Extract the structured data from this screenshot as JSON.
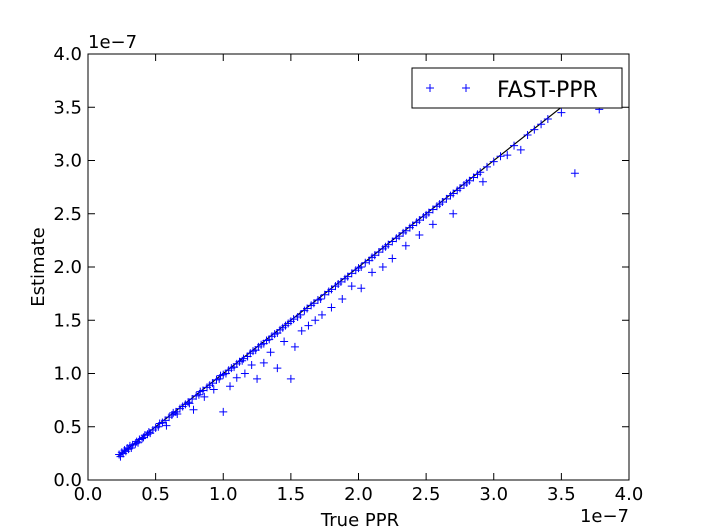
{
  "chart_data": {
    "type": "scatter",
    "title": "",
    "xlabel": "True PPR",
    "ylabel": "Estimate",
    "xlim": [
      0.0,
      4.0
    ],
    "ylim": [
      0.0,
      4.0
    ],
    "x_offset_label": "1e−7",
    "y_offset_label": "1e−7",
    "x_ticks": [
      "0.0",
      "0.5",
      "1.0",
      "1.5",
      "2.0",
      "2.5",
      "3.0",
      "3.5",
      "4.0"
    ],
    "y_ticks": [
      "0.0",
      "0.5",
      "1.0",
      "1.5",
      "2.0",
      "2.5",
      "3.0",
      "3.5",
      "4.0"
    ],
    "grid": false,
    "legend_placement": "top-right",
    "reference_line": {
      "x": [
        0.22,
        3.55
      ],
      "y": [
        0.22,
        3.55
      ]
    },
    "series": [
      {
        "name": "FAST-PPR",
        "marker": "+",
        "color": "#0000ff",
        "points": [
          [
            0.23,
            0.24
          ],
          [
            0.24,
            0.22
          ],
          [
            0.25,
            0.26
          ],
          [
            0.26,
            0.25
          ],
          [
            0.27,
            0.28
          ],
          [
            0.28,
            0.27
          ],
          [
            0.29,
            0.3
          ],
          [
            0.3,
            0.29
          ],
          [
            0.31,
            0.32
          ],
          [
            0.32,
            0.3
          ],
          [
            0.33,
            0.33
          ],
          [
            0.35,
            0.34
          ],
          [
            0.36,
            0.36
          ],
          [
            0.37,
            0.35
          ],
          [
            0.38,
            0.38
          ],
          [
            0.4,
            0.39
          ],
          [
            0.41,
            0.4
          ],
          [
            0.42,
            0.42
          ],
          [
            0.44,
            0.43
          ],
          [
            0.45,
            0.45
          ],
          [
            0.46,
            0.44
          ],
          [
            0.48,
            0.47
          ],
          [
            0.5,
            0.49
          ],
          [
            0.52,
            0.5
          ],
          [
            0.53,
            0.53
          ],
          [
            0.55,
            0.54
          ],
          [
            0.57,
            0.56
          ],
          [
            0.58,
            0.51
          ],
          [
            0.6,
            0.59
          ],
          [
            0.62,
            0.61
          ],
          [
            0.63,
            0.63
          ],
          [
            0.65,
            0.64
          ],
          [
            0.66,
            0.62
          ],
          [
            0.68,
            0.67
          ],
          [
            0.7,
            0.69
          ],
          [
            0.72,
            0.71
          ],
          [
            0.74,
            0.73
          ],
          [
            0.75,
            0.72
          ],
          [
            0.77,
            0.76
          ],
          [
            0.78,
            0.66
          ],
          [
            0.8,
            0.79
          ],
          [
            0.82,
            0.8
          ],
          [
            0.83,
            0.83
          ],
          [
            0.85,
            0.84
          ],
          [
            0.86,
            0.78
          ],
          [
            0.88,
            0.87
          ],
          [
            0.9,
            0.89
          ],
          [
            0.92,
            0.91
          ],
          [
            0.93,
            0.85
          ],
          [
            0.95,
            0.94
          ],
          [
            0.97,
            0.95
          ],
          [
            0.98,
            0.98
          ],
          [
            1.0,
            0.99
          ],
          [
            1.0,
            0.64
          ],
          [
            1.02,
            1.0
          ],
          [
            1.04,
            1.03
          ],
          [
            1.05,
            0.88
          ],
          [
            1.06,
            1.05
          ],
          [
            1.08,
            1.06
          ],
          [
            1.1,
            1.09
          ],
          [
            1.1,
            0.96
          ],
          [
            1.12,
            1.11
          ],
          [
            1.14,
            1.12
          ],
          [
            1.15,
            1.14
          ],
          [
            1.16,
            1.0
          ],
          [
            1.18,
            1.16
          ],
          [
            1.2,
            1.19
          ],
          [
            1.21,
            1.08
          ],
          [
            1.22,
            1.21
          ],
          [
            1.24,
            1.22
          ],
          [
            1.25,
            0.95
          ],
          [
            1.26,
            1.25
          ],
          [
            1.28,
            1.27
          ],
          [
            1.3,
            1.28
          ],
          [
            1.3,
            1.1
          ],
          [
            1.32,
            1.31
          ],
          [
            1.34,
            1.32
          ],
          [
            1.35,
            1.2
          ],
          [
            1.36,
            1.35
          ],
          [
            1.38,
            1.37
          ],
          [
            1.4,
            1.38
          ],
          [
            1.4,
            1.05
          ],
          [
            1.42,
            1.41
          ],
          [
            1.44,
            1.43
          ],
          [
            1.45,
            1.3
          ],
          [
            1.46,
            1.45
          ],
          [
            1.48,
            1.47
          ],
          [
            1.5,
            1.49
          ],
          [
            1.5,
            0.95
          ],
          [
            1.52,
            1.51
          ],
          [
            1.53,
            1.25
          ],
          [
            1.55,
            1.53
          ],
          [
            1.57,
            1.55
          ],
          [
            1.58,
            1.4
          ],
          [
            1.6,
            1.59
          ],
          [
            1.62,
            1.61
          ],
          [
            1.63,
            1.45
          ],
          [
            1.65,
            1.64
          ],
          [
            1.67,
            1.66
          ],
          [
            1.68,
            1.5
          ],
          [
            1.7,
            1.69
          ],
          [
            1.72,
            1.7
          ],
          [
            1.73,
            1.55
          ],
          [
            1.75,
            1.74
          ],
          [
            1.78,
            1.77
          ],
          [
            1.8,
            1.79
          ],
          [
            1.8,
            1.62
          ],
          [
            1.83,
            1.82
          ],
          [
            1.85,
            1.84
          ],
          [
            1.87,
            1.86
          ],
          [
            1.88,
            1.7
          ],
          [
            1.9,
            1.89
          ],
          [
            1.92,
            1.91
          ],
          [
            1.95,
            1.94
          ],
          [
            1.95,
            1.82
          ],
          [
            1.98,
            1.97
          ],
          [
            2.0,
            1.99
          ],
          [
            2.02,
            2.0
          ],
          [
            2.02,
            1.8
          ],
          [
            2.05,
            2.04
          ],
          [
            2.08,
            2.06
          ],
          [
            2.1,
            2.09
          ],
          [
            2.1,
            1.95
          ],
          [
            2.12,
            2.11
          ],
          [
            2.15,
            2.14
          ],
          [
            2.18,
            2.17
          ],
          [
            2.18,
            2.0
          ],
          [
            2.2,
            2.19
          ],
          [
            2.22,
            2.21
          ],
          [
            2.25,
            2.24
          ],
          [
            2.25,
            2.08
          ],
          [
            2.28,
            2.27
          ],
          [
            2.3,
            2.29
          ],
          [
            2.33,
            2.32
          ],
          [
            2.35,
            2.34
          ],
          [
            2.35,
            2.2
          ],
          [
            2.38,
            2.37
          ],
          [
            2.4,
            2.39
          ],
          [
            2.43,
            2.42
          ],
          [
            2.45,
            2.44
          ],
          [
            2.45,
            2.3
          ],
          [
            2.48,
            2.47
          ],
          [
            2.5,
            2.49
          ],
          [
            2.52,
            2.51
          ],
          [
            2.55,
            2.54
          ],
          [
            2.55,
            2.4
          ],
          [
            2.58,
            2.57
          ],
          [
            2.6,
            2.59
          ],
          [
            2.62,
            2.61
          ],
          [
            2.65,
            2.64
          ],
          [
            2.68,
            2.67
          ],
          [
            2.7,
            2.69
          ],
          [
            2.7,
            2.5
          ],
          [
            2.73,
            2.72
          ],
          [
            2.75,
            2.74
          ],
          [
            2.78,
            2.77
          ],
          [
            2.8,
            2.79
          ],
          [
            2.82,
            2.81
          ],
          [
            2.85,
            2.84
          ],
          [
            2.88,
            2.87
          ],
          [
            2.9,
            2.89
          ],
          [
            2.92,
            2.8
          ],
          [
            2.95,
            2.94
          ],
          [
            3.0,
            2.99
          ],
          [
            3.05,
            3.04
          ],
          [
            3.1,
            3.05
          ],
          [
            3.15,
            3.14
          ],
          [
            3.2,
            3.1
          ],
          [
            3.25,
            3.24
          ],
          [
            3.3,
            3.29
          ],
          [
            3.35,
            3.34
          ],
          [
            3.4,
            3.39
          ],
          [
            3.5,
            3.45
          ],
          [
            3.6,
            2.88
          ],
          [
            3.78,
            3.48
          ]
        ]
      }
    ]
  }
}
